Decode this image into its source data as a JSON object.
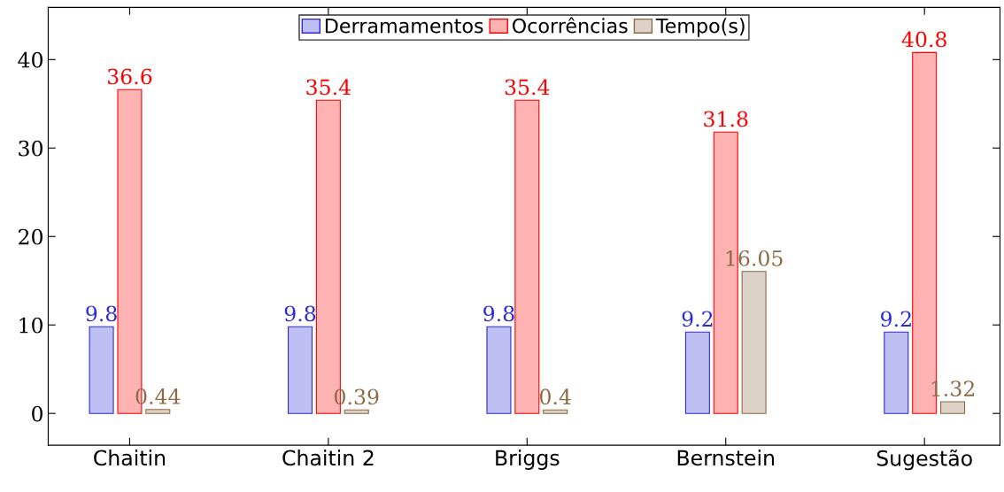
{
  "chart_data": {
    "type": "bar",
    "categories": [
      "Chaitin",
      "Chaitin 2",
      "Briggs",
      "Bernstein",
      "Sugestão"
    ],
    "series": [
      {
        "name": "Derramamentos",
        "color": "#2a2ad8",
        "values": [
          9.8,
          9.8,
          9.8,
          9.2,
          9.2
        ]
      },
      {
        "name": "Ocorrências",
        "color": "#ff0000",
        "values": [
          36.6,
          35.4,
          35.4,
          31.8,
          40.8
        ]
      },
      {
        "name": "Tempo(s)",
        "color": "#8b6a45",
        "values": [
          0.44,
          0.39,
          0.4,
          16.05,
          1.32
        ]
      }
    ],
    "ylim": [
      -3.6,
      45.9
    ],
    "yticks": [
      0,
      10,
      20,
      30,
      40
    ],
    "data_labels": true,
    "legend": "top",
    "grid": false
  }
}
